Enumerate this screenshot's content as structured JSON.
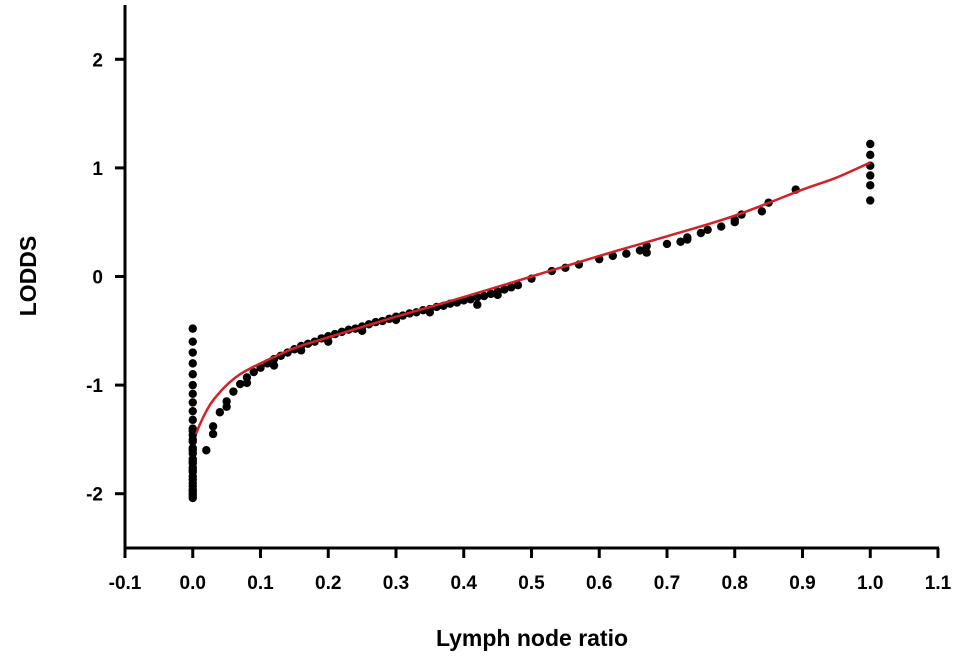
{
  "chart_data": {
    "type": "scatter",
    "title": "",
    "xlabel": "Lymph node ratio",
    "ylabel": "LODDS",
    "xlim": [
      -0.1,
      1.1
    ],
    "ylim": [
      -2.5,
      2.5
    ],
    "xticks": [
      -0.1,
      0.0,
      0.1,
      0.2,
      0.3,
      0.4,
      0.5,
      0.6,
      0.7,
      0.8,
      0.9,
      1.0,
      1.1
    ],
    "xtick_labels": [
      "-0.1",
      "0.0",
      "0.1",
      "0.2",
      "0.3",
      "0.4",
      "0.5",
      "0.6",
      "0.7",
      "0.8",
      "0.9",
      "1.0",
      "1.1"
    ],
    "yticks": [
      -2,
      -1,
      0,
      1,
      2
    ],
    "ytick_labels": [
      "-2",
      "-1",
      "0",
      "1",
      "2"
    ],
    "grid": false,
    "legend": "none",
    "series": [
      {
        "kind": "points",
        "color": "#000000",
        "x": [
          0,
          0,
          0,
          0,
          0,
          0,
          0,
          0,
          0,
          0,
          0,
          0,
          0,
          0,
          0,
          0,
          0,
          0,
          0,
          0,
          0,
          0,
          0,
          0,
          0,
          0,
          0,
          0,
          0,
          0,
          0,
          0,
          0,
          0.02,
          0.03,
          0.04,
          0.05,
          0.06,
          0.07,
          0.08,
          0.09,
          0.1,
          0.11,
          0.12,
          0.13,
          0.14,
          0.15,
          0.16,
          0.17,
          0.18,
          0.19,
          0.2,
          0.21,
          0.22,
          0.23,
          0.24,
          0.25,
          0.26,
          0.27,
          0.28,
          0.29,
          0.3,
          0.31,
          0.32,
          0.33,
          0.34,
          0.35,
          0.36,
          0.37,
          0.38,
          0.39,
          0.4,
          0.41,
          0.42,
          0.43,
          0.44,
          0.45,
          0.46,
          0.47,
          0.48,
          0.5,
          0.53,
          0.55,
          0.57,
          0.6,
          0.62,
          0.64,
          0.66,
          0.67,
          0.7,
          0.72,
          0.73,
          0.75,
          0.76,
          0.78,
          0.8,
          0.81,
          0.84,
          0.85,
          0.89,
          1.0,
          1.0,
          1.0,
          1.0,
          1.0,
          1.0,
          0.03,
          0.05,
          0.08,
          0.12,
          0.16,
          0.2,
          0.25,
          0.3,
          0.35,
          0.42,
          0.45,
          0.67,
          0.73,
          0.8
        ],
        "y": [
          -0.48,
          -0.6,
          -0.7,
          -0.8,
          -0.9,
          -1.0,
          -1.08,
          -1.16,
          -1.24,
          -1.32,
          -1.4,
          -1.46,
          -1.52,
          -1.58,
          -1.63,
          -1.68,
          -1.72,
          -1.76,
          -1.8,
          -1.84,
          -1.87,
          -1.9,
          -1.93,
          -1.96,
          -1.98,
          -2.0,
          -2.02,
          -2.04,
          -1.42,
          -1.5,
          -1.6,
          -1.7,
          -1.78,
          -1.6,
          -1.38,
          -1.25,
          -1.15,
          -1.06,
          -0.99,
          -0.93,
          -0.88,
          -0.84,
          -0.8,
          -0.76,
          -0.73,
          -0.7,
          -0.67,
          -0.64,
          -0.62,
          -0.6,
          -0.57,
          -0.55,
          -0.53,
          -0.51,
          -0.49,
          -0.48,
          -0.46,
          -0.44,
          -0.42,
          -0.41,
          -0.39,
          -0.37,
          -0.36,
          -0.34,
          -0.33,
          -0.31,
          -0.3,
          -0.28,
          -0.27,
          -0.25,
          -0.24,
          -0.22,
          -0.21,
          -0.19,
          -0.18,
          -0.16,
          -0.14,
          -0.12,
          -0.1,
          -0.08,
          -0.02,
          0.05,
          0.08,
          0.11,
          0.16,
          0.19,
          0.21,
          0.24,
          0.28,
          0.3,
          0.32,
          0.34,
          0.4,
          0.43,
          0.46,
          0.52,
          0.57,
          0.6,
          0.68,
          0.8,
          1.22,
          1.12,
          1.02,
          0.93,
          0.84,
          0.7,
          -1.45,
          -1.2,
          -0.98,
          -0.82,
          -0.68,
          -0.6,
          -0.5,
          -0.4,
          -0.33,
          -0.26,
          -0.17,
          0.22,
          0.36,
          0.5
        ]
      },
      {
        "kind": "curve",
        "color": "#d42027",
        "x": [
          0.005,
          0.01,
          0.02,
          0.03,
          0.05,
          0.07,
          0.1,
          0.15,
          0.2,
          0.3,
          0.4,
          0.5,
          0.6,
          0.7,
          0.8,
          0.9,
          0.95,
          1.0
        ],
        "y": [
          -1.45,
          -1.37,
          -1.24,
          -1.14,
          -1.0,
          -0.9,
          -0.8,
          -0.66,
          -0.56,
          -0.37,
          -0.19,
          0.0,
          0.19,
          0.37,
          0.56,
          0.8,
          0.91,
          1.05
        ]
      }
    ]
  }
}
